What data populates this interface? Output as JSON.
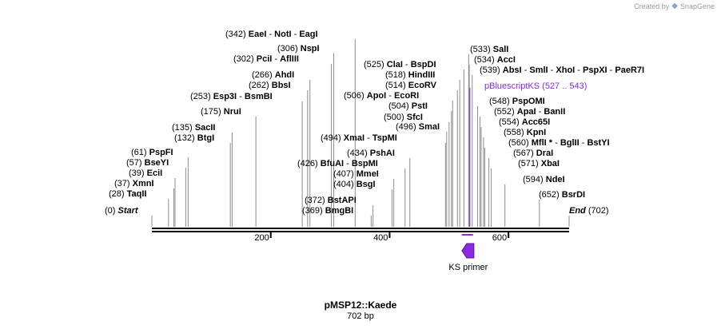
{
  "watermark": {
    "prefix": "Created by",
    "brand": "SnapGene"
  },
  "title": "pMSP12::Kaede",
  "length_label": "702 bp",
  "sequence_length": 702,
  "ruler_ticks": [
    "200",
    "400",
    "600"
  ],
  "ends": {
    "start": {
      "pos": "(0)",
      "label": "Start"
    },
    "end": {
      "pos": "(702)",
      "label": "End"
    }
  },
  "sites": [
    {
      "pos": "(28)",
      "parts": [
        "TaqII"
      ],
      "bp": 28
    },
    {
      "pos": "(37)",
      "parts": [
        "XmnI"
      ],
      "bp": 37
    },
    {
      "pos": "(39)",
      "parts": [
        "EciI"
      ],
      "bp": 39
    },
    {
      "pos": "(57)",
      "parts": [
        "BseYI"
      ],
      "bp": 57
    },
    {
      "pos": "(61)",
      "parts": [
        "PspFI"
      ],
      "bp": 61
    },
    {
      "pos": "(132)",
      "parts": [
        "BtgI"
      ],
      "bp": 132
    },
    {
      "pos": "(135)",
      "parts": [
        "SacII"
      ],
      "bp": 135
    },
    {
      "pos": "(175)",
      "parts": [
        "NruI"
      ],
      "bp": 175
    },
    {
      "pos": "(253)",
      "parts": [
        "Esp3I",
        "BsmBI"
      ],
      "bp": 253
    },
    {
      "pos": "(262)",
      "parts": [
        "BbsI"
      ],
      "bp": 262
    },
    {
      "pos": "(266)",
      "parts": [
        "AhdI"
      ],
      "bp": 266
    },
    {
      "pos": "(302)",
      "parts": [
        "PciI",
        "AflIII"
      ],
      "bp": 302
    },
    {
      "pos": "(306)",
      "parts": [
        "NspI"
      ],
      "bp": 306
    },
    {
      "pos": "(342)",
      "parts": [
        "EaeI",
        "NotI",
        "EagI"
      ],
      "bp": 342
    },
    {
      "pos": "(369)",
      "parts": [
        "BmgBI"
      ],
      "bp": 369
    },
    {
      "pos": "(372)",
      "parts": [
        "BstAPI"
      ],
      "bp": 372
    },
    {
      "pos": "(404)",
      "parts": [
        "BsgI"
      ],
      "bp": 404
    },
    {
      "pos": "(407)",
      "parts": [
        "MmeI"
      ],
      "bp": 407
    },
    {
      "pos": "(426)",
      "parts": [
        "BfuAI",
        "BspMI"
      ],
      "bp": 426
    },
    {
      "pos": "(434)",
      "parts": [
        "PshAI"
      ],
      "bp": 434
    },
    {
      "pos": "(494)",
      "parts": [
        "XmaI",
        "TspMI"
      ],
      "bp": 494
    },
    {
      "pos": "(496)",
      "parts": [
        "SmaI"
      ],
      "bp": 496
    },
    {
      "pos": "(500)",
      "parts": [
        "SfcI"
      ],
      "bp": 500
    },
    {
      "pos": "(504)",
      "parts": [
        "PstI"
      ],
      "bp": 504
    },
    {
      "pos": "(506)",
      "parts": [
        "ApoI",
        "EcoRI"
      ],
      "bp": 506
    },
    {
      "pos": "(514)",
      "parts": [
        "EcoRV"
      ],
      "bp": 514
    },
    {
      "pos": "(518)",
      "parts": [
        "HindIII"
      ],
      "bp": 518
    },
    {
      "pos": "(525)",
      "parts": [
        "ClaI",
        "BspDI"
      ],
      "bp": 525
    },
    {
      "pos": "(533)",
      "parts": [
        "SalI"
      ],
      "bp": 533
    },
    {
      "pos": "(534)",
      "parts": [
        "AccI"
      ],
      "bp": 534
    },
    {
      "pos": "(539)",
      "parts": [
        "AbsI",
        "SmlI",
        "XhoI",
        "PspXI",
        "PaeR7I"
      ],
      "bp": 539
    },
    {
      "pos": "(548)",
      "parts": [
        "PspOMI"
      ],
      "bp": 548
    },
    {
      "pos": "(552)",
      "parts": [
        "ApaI",
        "BanII"
      ],
      "bp": 552
    },
    {
      "pos": "(554)",
      "parts": [
        "Acc65I"
      ],
      "bp": 554
    },
    {
      "pos": "(558)",
      "parts": [
        "KpnI"
      ],
      "bp": 558
    },
    {
      "pos": "(560)",
      "parts": [
        "MflI *",
        "BglII",
        "BstYI"
      ],
      "bp": 560
    },
    {
      "pos": "(567)",
      "parts": [
        "DraI"
      ],
      "bp": 567
    },
    {
      "pos": "(571)",
      "parts": [
        "XbaI"
      ],
      "bp": 571
    },
    {
      "pos": "(594)",
      "parts": [
        "NdeI"
      ],
      "bp": 594
    },
    {
      "pos": "(652)",
      "parts": [
        "BsrDI"
      ],
      "bp": 652
    }
  ],
  "primer_site": {
    "name": "pBluescriptKS",
    "pos": "(527 .. 543)",
    "start_bp": 527,
    "end_bp": 543,
    "color": "#8a2be2"
  },
  "feature": {
    "name": "KS primer",
    "color": "#8a2be2",
    "direction": "reverse"
  }
}
